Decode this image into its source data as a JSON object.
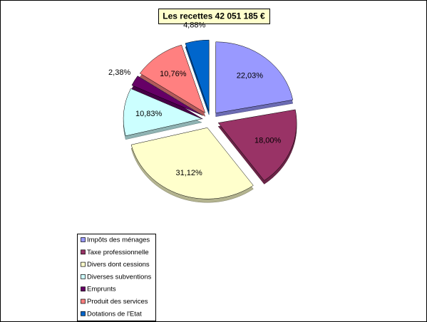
{
  "chart_data": {
    "type": "pie",
    "title": "Les recettes 42 051 185 €",
    "categories": [
      "Impôts des ménages",
      "Taxe professionnelle",
      "Divers dont cessions",
      "Diverses subventions",
      "Emprunts",
      "Produit des services",
      "Dotations de l'Etat"
    ],
    "values": [
      22.03,
      18.0,
      31.12,
      10.83,
      2.38,
      10.76,
      4.88
    ],
    "value_labels": [
      "22,03%",
      "18,00%",
      "31,12%",
      "10,83%",
      "2,38%",
      "10,76%",
      "4,88%"
    ],
    "colors": [
      "#9999ff",
      "#993366",
      "#ffffcc",
      "#ccffff",
      "#660066",
      "#ff8080",
      "#0066cc"
    ]
  }
}
